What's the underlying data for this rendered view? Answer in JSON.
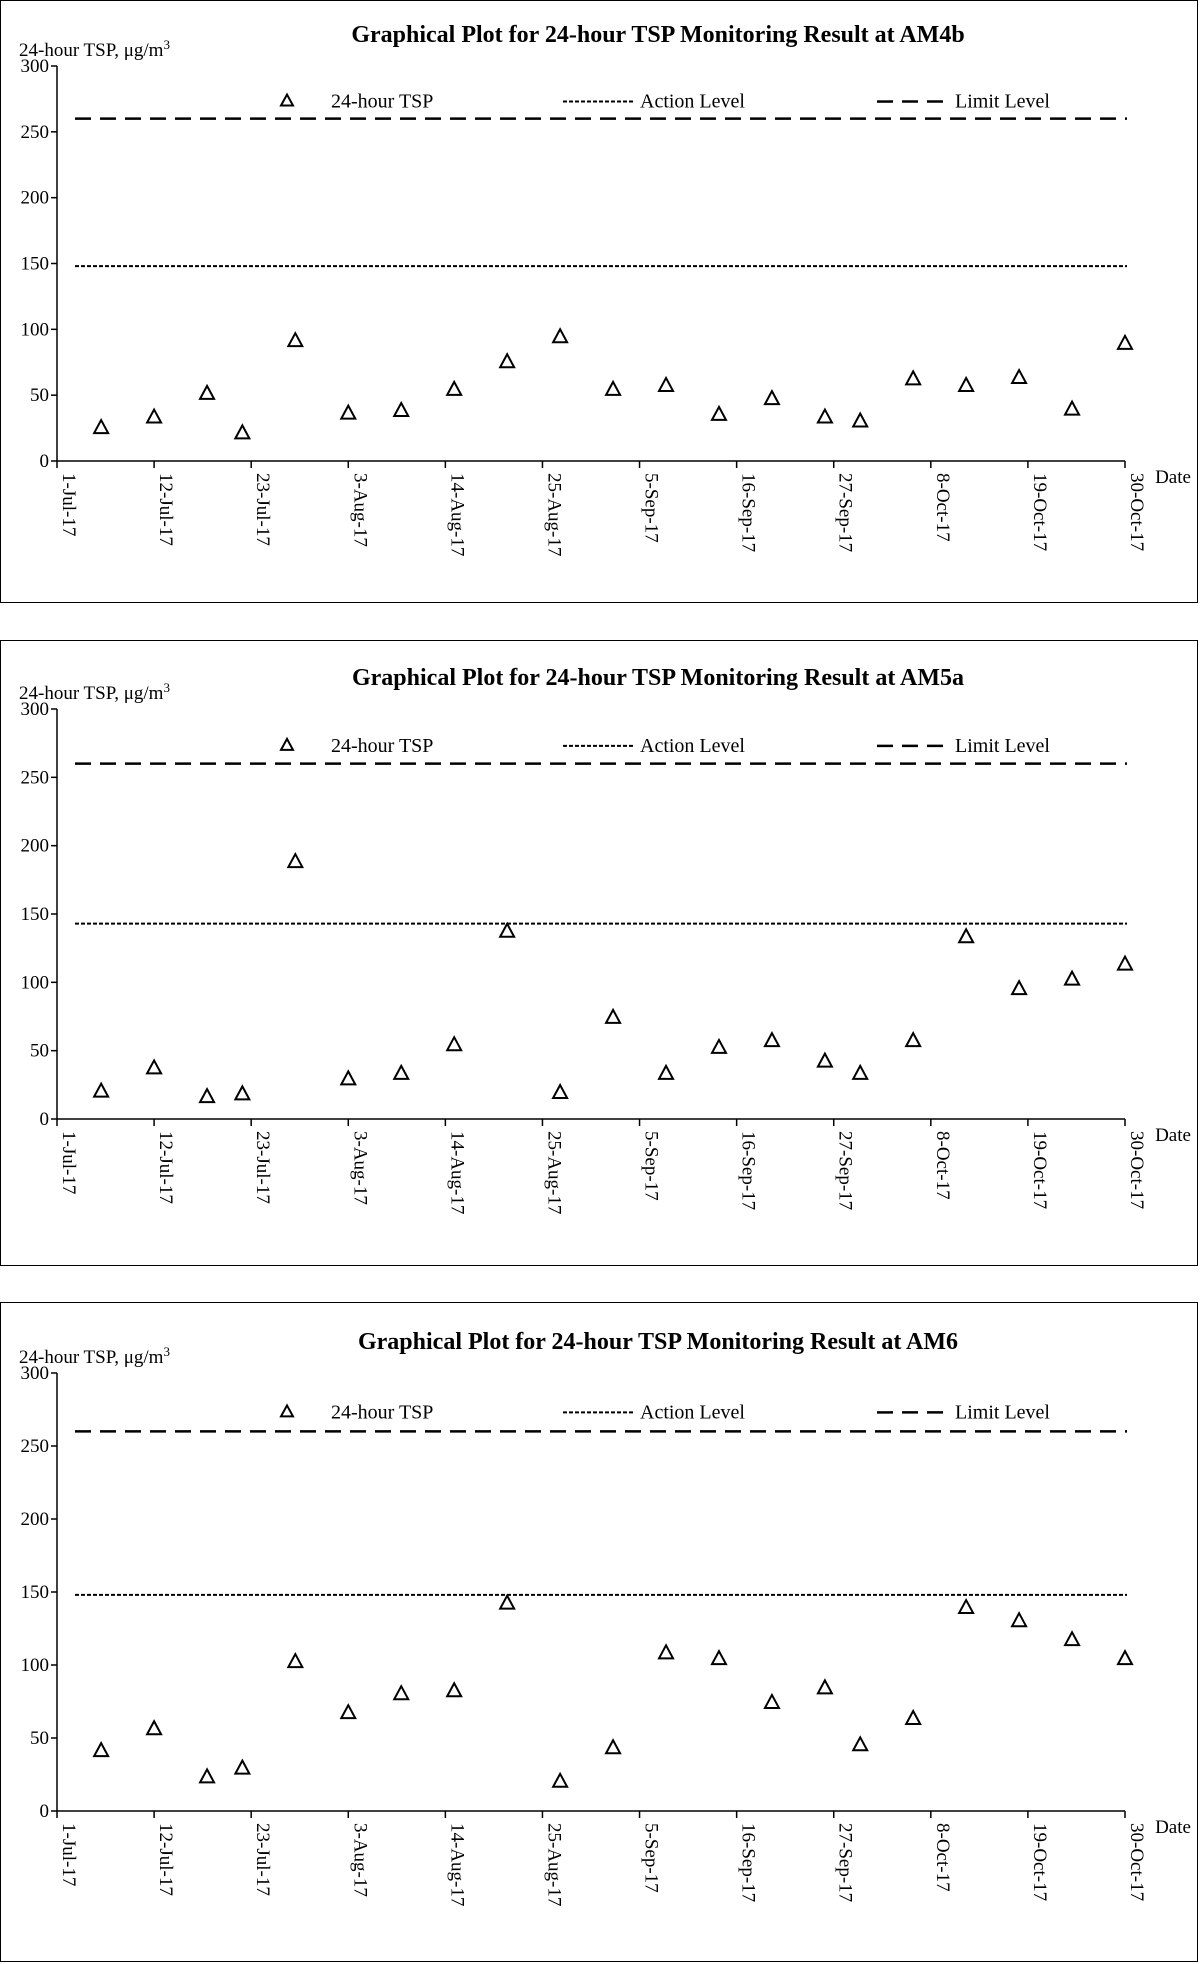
{
  "colors": {
    "line": "#000000",
    "background": "#ffffff"
  },
  "chart_data": [
    {
      "type": "scatter",
      "title": "Graphical Plot for 24-hour TSP Monitoring Result at AM4b",
      "ylabel": "24-hour TSP, μg/m",
      "ylabel_sup": "3",
      "xlabel": "Date",
      "ylim": [
        0,
        300
      ],
      "yticks": [
        0,
        50,
        100,
        150,
        200,
        250,
        300
      ],
      "xdomain": [
        "2017-07-01",
        "2017-10-30"
      ],
      "xticks": [
        "2017-07-01",
        "2017-07-12",
        "2017-07-23",
        "2017-08-03",
        "2017-08-14",
        "2017-08-25",
        "2017-09-05",
        "2017-09-16",
        "2017-09-27",
        "2017-10-08",
        "2017-10-19",
        "2017-10-30"
      ],
      "xtick_labels": [
        "1-Jul-17",
        "12-Jul-17",
        "23-Jul-17",
        "3-Aug-17",
        "14-Aug-17",
        "25-Aug-17",
        "5-Sep-17",
        "16-Sep-17",
        "27-Sep-17",
        "8-Oct-17",
        "19-Oct-17",
        "30-Oct-17"
      ],
      "legend": {
        "series": "24-hour TSP",
        "action": "Action Level",
        "limit": "Limit Level"
      },
      "action_level": 148,
      "limit_level": 260,
      "series": [
        {
          "name": "24-hour TSP",
          "x": [
            "2017-07-06",
            "2017-07-12",
            "2017-07-18",
            "2017-07-22",
            "2017-07-28",
            "2017-08-03",
            "2017-08-09",
            "2017-08-15",
            "2017-08-21",
            "2017-08-27",
            "2017-09-02",
            "2017-09-08",
            "2017-09-14",
            "2017-09-20",
            "2017-09-26",
            "2017-09-30",
            "2017-10-06",
            "2017-10-12",
            "2017-10-18",
            "2017-10-24",
            "2017-10-30"
          ],
          "y": [
            25,
            33,
            51,
            21,
            91,
            36,
            38,
            54,
            75,
            94,
            54,
            57,
            35,
            47,
            33,
            30,
            62,
            57,
            63,
            39,
            89
          ]
        }
      ]
    },
    {
      "type": "scatter",
      "title": "Graphical Plot for 24-hour TSP Monitoring Result at AM5a",
      "ylabel": "24-hour TSP, μg/m",
      "ylabel_sup": "3",
      "xlabel": "Date",
      "ylim": [
        0,
        300
      ],
      "yticks": [
        0,
        50,
        100,
        150,
        200,
        250,
        300
      ],
      "xdomain": [
        "2017-07-01",
        "2017-10-30"
      ],
      "xticks": [
        "2017-07-01",
        "2017-07-12",
        "2017-07-23",
        "2017-08-03",
        "2017-08-14",
        "2017-08-25",
        "2017-09-05",
        "2017-09-16",
        "2017-09-27",
        "2017-10-08",
        "2017-10-19",
        "2017-10-30"
      ],
      "xtick_labels": [
        "1-Jul-17",
        "12-Jul-17",
        "23-Jul-17",
        "3-Aug-17",
        "14-Aug-17",
        "25-Aug-17",
        "5-Sep-17",
        "16-Sep-17",
        "27-Sep-17",
        "8-Oct-17",
        "19-Oct-17",
        "30-Oct-17"
      ],
      "legend": {
        "series": "24-hour TSP",
        "action": "Action Level",
        "limit": "Limit Level"
      },
      "action_level": 143,
      "limit_level": 260,
      "series": [
        {
          "name": "24-hour TSP",
          "x": [
            "2017-07-06",
            "2017-07-12",
            "2017-07-18",
            "2017-07-22",
            "2017-07-28",
            "2017-08-03",
            "2017-08-09",
            "2017-08-15",
            "2017-08-21",
            "2017-08-27",
            "2017-09-02",
            "2017-09-08",
            "2017-09-14",
            "2017-09-20",
            "2017-09-26",
            "2017-09-30",
            "2017-10-06",
            "2017-10-12",
            "2017-10-18",
            "2017-10-24",
            "2017-10-30"
          ],
          "y": [
            20,
            37,
            16,
            18,
            188,
            29,
            33,
            54,
            137,
            19,
            74,
            33,
            52,
            57,
            42,
            33,
            57,
            133,
            95,
            102,
            113
          ]
        }
      ]
    },
    {
      "type": "scatter",
      "title": "Graphical Plot for 24-hour TSP Monitoring Result at AM6",
      "ylabel": "24-hour TSP, μg/m",
      "ylabel_sup": "3",
      "xlabel": "Date",
      "ylim": [
        0,
        300
      ],
      "yticks": [
        0,
        50,
        100,
        150,
        200,
        250,
        300
      ],
      "xdomain": [
        "2017-07-01",
        "2017-10-30"
      ],
      "xticks": [
        "2017-07-01",
        "2017-07-12",
        "2017-07-23",
        "2017-08-03",
        "2017-08-14",
        "2017-08-25",
        "2017-09-05",
        "2017-09-16",
        "2017-09-27",
        "2017-10-08",
        "2017-10-19",
        "2017-10-30"
      ],
      "xtick_labels": [
        "1-Jul-17",
        "12-Jul-17",
        "23-Jul-17",
        "3-Aug-17",
        "14-Aug-17",
        "25-Aug-17",
        "5-Sep-17",
        "16-Sep-17",
        "27-Sep-17",
        "8-Oct-17",
        "19-Oct-17",
        "30-Oct-17"
      ],
      "legend": {
        "series": "24-hour TSP",
        "action": "Action Level",
        "limit": "Limit Level"
      },
      "action_level": 148,
      "limit_level": 260,
      "series": [
        {
          "name": "24-hour TSP",
          "x": [
            "2017-07-06",
            "2017-07-12",
            "2017-07-18",
            "2017-07-22",
            "2017-07-28",
            "2017-08-03",
            "2017-08-09",
            "2017-08-15",
            "2017-08-21",
            "2017-08-27",
            "2017-09-02",
            "2017-09-08",
            "2017-09-14",
            "2017-09-20",
            "2017-09-26",
            "2017-09-30",
            "2017-10-06",
            "2017-10-12",
            "2017-10-18",
            "2017-10-24",
            "2017-10-30"
          ],
          "y": [
            41,
            56,
            23,
            29,
            102,
            67,
            80,
            82,
            142,
            20,
            43,
            108,
            104,
            74,
            84,
            45,
            63,
            139,
            130,
            117,
            104
          ]
        }
      ]
    }
  ]
}
